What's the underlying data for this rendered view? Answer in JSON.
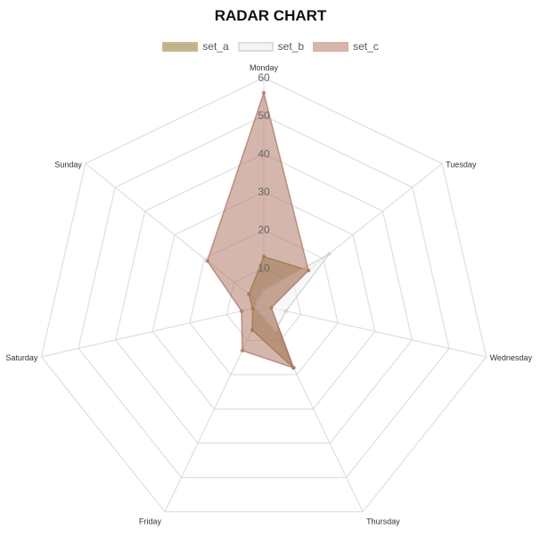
{
  "chart_data": {
    "type": "radar",
    "title": "RADAR CHART",
    "axes": [
      "Monday",
      "Tuesday",
      "Wednesday",
      "Thursday",
      "Friday",
      "Saturday",
      "Sunday"
    ],
    "rlim": [
      0,
      60
    ],
    "ticks": [
      10,
      20,
      30,
      40,
      50,
      60
    ],
    "grid": true,
    "legend_position": "top-center",
    "series": [
      {
        "name": "set_a",
        "values": [
          13,
          15,
          2,
          18,
          7,
          3,
          5
        ],
        "fill": "#8a7430",
        "stroke": "#8a7430"
      },
      {
        "name": "set_b",
        "values": [
          4,
          22,
          6,
          7,
          2,
          2,
          2
        ],
        "fill": "#f3f3f3",
        "stroke": "#cfcfcf"
      },
      {
        "name": "set_c",
        "values": [
          56,
          15,
          2,
          18,
          13,
          6,
          19
        ],
        "fill": "#b07a6a",
        "stroke": "#b07a6a"
      }
    ]
  }
}
